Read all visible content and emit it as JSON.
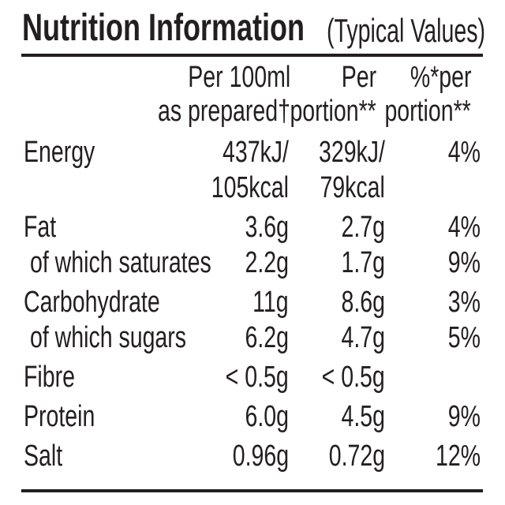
{
  "title": {
    "main": "Nutrition Information",
    "sub": "(Typical Values)"
  },
  "header": {
    "per100_line1": "Per 100ml",
    "per100_line2": "as prepared†",
    "portion_line1": "Per",
    "portion_line2": "portion**",
    "pct_line1": "%*per",
    "pct_line2": "portion**"
  },
  "rows": [
    {
      "label": "Energy",
      "per100": "437kJ/",
      "portion": "329kJ/",
      "pct": "4%"
    },
    {
      "label": "",
      "per100": "105kcal",
      "portion": "79kcal",
      "pct": ""
    },
    {
      "label": "Fat",
      "per100": "3.6g",
      "portion": "2.7g",
      "pct": "4%"
    },
    {
      "label": "of which saturates",
      "per100": "2.2g",
      "portion": "1.7g",
      "pct": "9%"
    },
    {
      "label": "Carbohydrate",
      "per100": "11g",
      "portion": "8.6g",
      "pct": "3%"
    },
    {
      "label": "of which sugars",
      "per100": "6.2g",
      "portion": "4.7g",
      "pct": "5%"
    },
    {
      "label": "Fibre",
      "per100": "< 0.5g",
      "portion": "< 0.5g",
      "pct": ""
    },
    {
      "label": "Protein",
      "per100": "6.0g",
      "portion": "4.5g",
      "pct": "9%"
    },
    {
      "label": "Salt",
      "per100": "0.96g",
      "portion": "0.72g",
      "pct": "12%"
    }
  ],
  "colors": {
    "text": "#231f20",
    "background": "#ffffff"
  }
}
